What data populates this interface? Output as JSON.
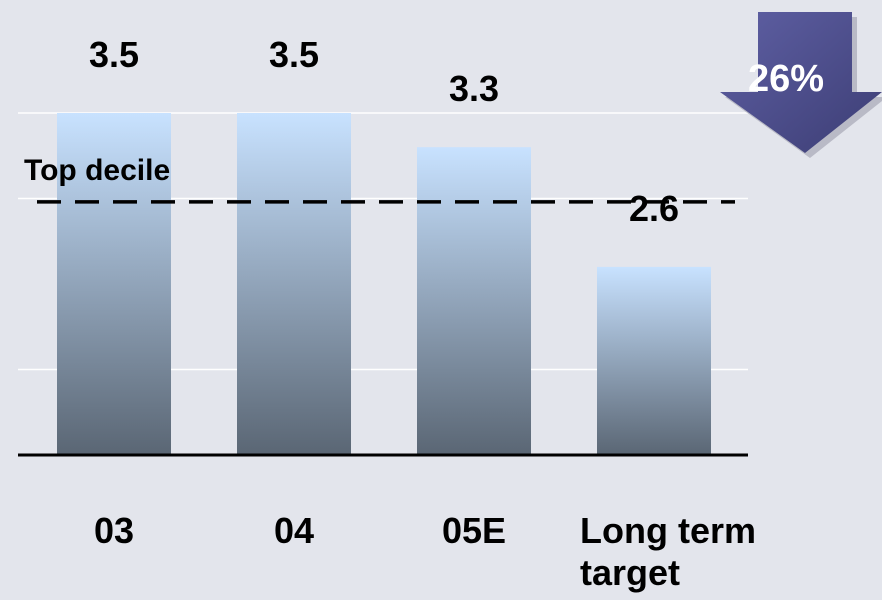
{
  "chart_data": {
    "type": "bar",
    "categories": [
      "03",
      "04",
      "05E",
      "Long term target"
    ],
    "category_lines": [
      [
        "03"
      ],
      [
        "04"
      ],
      [
        "05E"
      ],
      [
        "Long term",
        "target"
      ]
    ],
    "values": [
      3.5,
      3.5,
      3.3,
      2.6
    ],
    "data_labels": [
      "3.5",
      "3.5",
      "3.3",
      "2.6"
    ],
    "ylim": [
      1.5,
      3.5
    ],
    "grid": true,
    "reference_line": {
      "label": "Top decile",
      "value": 2.98,
      "style": "dashed"
    },
    "callout": {
      "label": "26%",
      "shape": "down-arrow",
      "placement": "top-right"
    }
  },
  "colors": {
    "background": "#e3e5ec",
    "bar_top": "#c8e2ff",
    "bar_bottom": "#5a6674",
    "arrow": "#4e4f8c",
    "axis": "#000000",
    "grid": "#ffffff"
  }
}
